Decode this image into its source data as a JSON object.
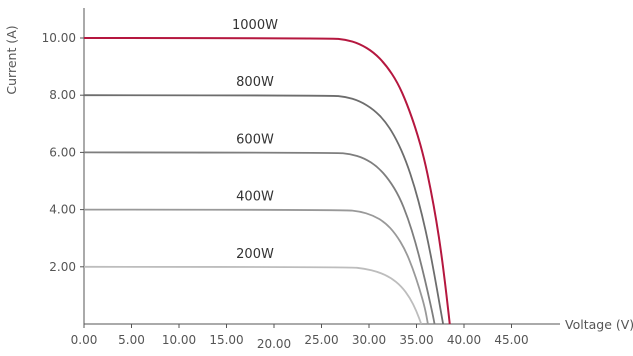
{
  "chart_data": {
    "type": "line",
    "title": "",
    "xlabel": "Voltage (V)",
    "ylabel": "Current (A)",
    "xlim": [
      0,
      45
    ],
    "ylim": [
      0,
      10.5
    ],
    "x_ticks": [
      "0.00",
      "5.00",
      "10.00",
      "15.00",
      "20.00",
      "25.00",
      "30.00",
      "35.00",
      "40.00",
      "45.00"
    ],
    "y_ticks": [
      "2.00",
      "4.00",
      "6.00",
      "8.00",
      "10.00"
    ],
    "grid": false,
    "legend": "none",
    "series": [
      {
        "name": "1000W",
        "color": "#b5173f",
        "points": [
          [
            0,
            10.0
          ],
          [
            26,
            9.99
          ],
          [
            27.5,
            9.95
          ],
          [
            29,
            9.8
          ],
          [
            30.5,
            9.5
          ],
          [
            31.8,
            9.05
          ],
          [
            33,
            8.45
          ],
          [
            34,
            7.7
          ],
          [
            35,
            6.75
          ],
          [
            35.8,
            5.8
          ],
          [
            36.5,
            4.7
          ],
          [
            37.1,
            3.6
          ],
          [
            37.6,
            2.5
          ],
          [
            38.0,
            1.45
          ],
          [
            38.3,
            0.6
          ],
          [
            38.5,
            0
          ]
        ]
      },
      {
        "name": "800W",
        "color": "#6d6d6d",
        "points": [
          [
            0,
            8.0
          ],
          [
            26,
            7.99
          ],
          [
            27.5,
            7.95
          ],
          [
            29,
            7.8
          ],
          [
            30.5,
            7.5
          ],
          [
            31.8,
            7.05
          ],
          [
            32.9,
            6.45
          ],
          [
            33.9,
            5.7
          ],
          [
            34.8,
            4.8
          ],
          [
            35.6,
            3.8
          ],
          [
            36.3,
            2.75
          ],
          [
            36.9,
            1.7
          ],
          [
            37.4,
            0.75
          ],
          [
            37.8,
            0
          ]
        ]
      },
      {
        "name": "600W",
        "color": "#7e7e7e",
        "points": [
          [
            0,
            6.0
          ],
          [
            26.5,
            5.99
          ],
          [
            28,
            5.95
          ],
          [
            29.5,
            5.8
          ],
          [
            30.9,
            5.5
          ],
          [
            32.1,
            5.05
          ],
          [
            33.2,
            4.45
          ],
          [
            34.1,
            3.7
          ],
          [
            34.9,
            2.85
          ],
          [
            35.6,
            1.95
          ],
          [
            36.2,
            1.1
          ],
          [
            36.7,
            0.35
          ],
          [
            36.9,
            0
          ]
        ]
      },
      {
        "name": "400W",
        "color": "#999999",
        "points": [
          [
            0,
            4.0
          ],
          [
            27.5,
            3.99
          ],
          [
            29,
            3.94
          ],
          [
            30.4,
            3.8
          ],
          [
            31.7,
            3.55
          ],
          [
            32.8,
            3.15
          ],
          [
            33.8,
            2.6
          ],
          [
            34.6,
            1.95
          ],
          [
            35.3,
            1.25
          ],
          [
            35.9,
            0.55
          ],
          [
            36.2,
            0
          ]
        ]
      },
      {
        "name": "200W",
        "color": "#bdbdbd",
        "points": [
          [
            0,
            2.0
          ],
          [
            28,
            1.99
          ],
          [
            29.5,
            1.94
          ],
          [
            31,
            1.82
          ],
          [
            32.3,
            1.62
          ],
          [
            33.4,
            1.32
          ],
          [
            34.3,
            0.92
          ],
          [
            35.0,
            0.45
          ],
          [
            35.5,
            0
          ]
        ]
      }
    ]
  }
}
